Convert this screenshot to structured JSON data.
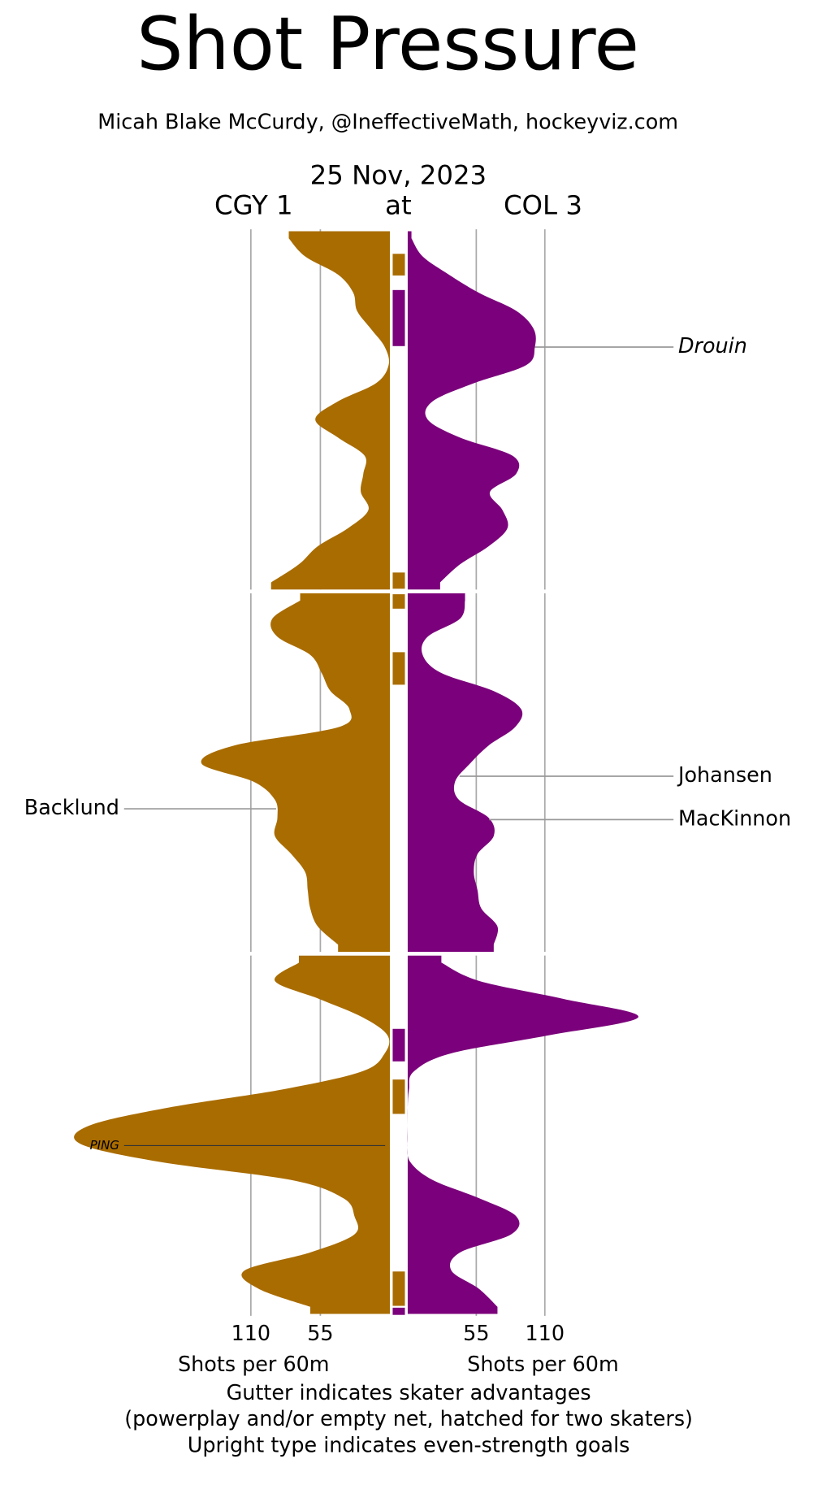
{
  "chart_data": {
    "type": "shot_pressure",
    "title": "Shot Pressure",
    "subtitle": "Micah Blake McCurdy, @IneffectiveMath, hockeyviz.com",
    "date": "25 Nov, 2023",
    "separator": "at",
    "x": [
      0.5,
      1.5,
      2.5,
      3.5,
      4.5,
      5.5,
      6.5,
      7.5,
      8.5,
      9.5,
      10.5,
      11.5,
      12.5,
      13.5,
      14.5,
      15.5,
      16.5,
      17.5,
      18.5,
      19.5,
      20.5,
      21.5,
      22.5,
      23.5,
      24.5,
      25.5,
      26.5,
      27.5,
      28.5,
      29.5,
      30.5,
      31.5,
      32.5,
      33.5,
      34.5,
      35.5,
      36.5,
      37.5,
      38.5,
      39.5,
      40.5,
      41.5,
      42.5,
      43.5,
      44.5,
      45.5,
      46.5,
      47.5,
      48.5,
      49.5,
      50.5,
      51.5,
      52.5,
      53.5,
      54.5,
      55.5,
      56.5,
      57.5,
      58.5,
      59.5
    ],
    "xlim": [
      0,
      60
    ],
    "period_breaks": [
      20,
      40
    ],
    "series": [
      {
        "name": "CGY 1",
        "side": "left",
        "color": "#a96c00",
        "values": [
          80,
          67,
          41,
          29,
          26,
          15,
          4,
          1,
          11,
          41,
          59,
          41,
          20,
          21,
          23,
          17,
          33,
          57,
          72,
          94,
          71,
          93,
          89,
          63,
          54,
          47,
          32,
          41,
          123,
          149,
          108,
          91,
          89,
          91,
          78,
          67,
          65,
          63,
          57,
          41,
          72,
          91,
          56,
          22,
          2,
          4,
          22,
          85,
          175,
          238,
          245,
          182,
          78,
          37,
          28,
          28,
          63,
          115,
          104,
          63
        ]
      },
      {
        "name": "COL 3",
        "side": "right",
        "color": "#7b007b",
        "values": [
          3,
          12,
          33,
          57,
          87,
          101,
          102,
          95,
          53,
          20,
          16,
          42,
          84,
          87,
          66,
          76,
          80,
          65,
          42,
          26,
          46,
          42,
          16,
          12,
          27,
          69,
          91,
          86,
          65,
          50,
          38,
          41,
          65,
          69,
          56,
          53,
          56,
          59,
          72,
          69,
          27,
          57,
          125,
          185,
          114,
          35,
          5,
          1,
          0,
          0,
          0,
          2,
          20,
          57,
          87,
          83,
          42,
          35,
          57,
          72
        ]
      }
    ],
    "ylim": [
      0,
      250
    ],
    "yticks": [
      55,
      110
    ],
    "ylabel": "Shots per 60m",
    "grid": true,
    "advantages": [
      {
        "color": "#a96c00",
        "start": 1.3,
        "end": 2.6
      },
      {
        "color": "#7b007b",
        "start": 3.3,
        "end": 6.5
      },
      {
        "color": "#a96c00",
        "start": 18.9,
        "end": 19.9
      },
      {
        "color": "#a96c00",
        "start": 20.1,
        "end": 21.0
      },
      {
        "color": "#a96c00",
        "start": 23.3,
        "end": 25.2
      },
      {
        "color": "#7b007b",
        "start": 44.1,
        "end": 46.0
      },
      {
        "color": "#a96c00",
        "start": 46.9,
        "end": 48.9
      },
      {
        "color": "#a96c00",
        "start": 57.5,
        "end": 59.5
      },
      {
        "color": "#7b007b",
        "start": 59.5,
        "end": 60
      }
    ],
    "annotations": [
      {
        "text": "Drouin",
        "minute": 6.5,
        "side": "right",
        "italic": true
      },
      {
        "text": "Johansen",
        "minute": 30.2,
        "side": "right",
        "italic": false
      },
      {
        "text": "MacKinnon",
        "minute": 32.6,
        "side": "right",
        "italic": false
      },
      {
        "text": "Backlund",
        "minute": 32.0,
        "side": "left",
        "italic": false
      },
      {
        "text": "PING",
        "minute": 50.6,
        "side": "left",
        "italic": true
      }
    ],
    "notes": [
      "Gutter indicates skater advantages",
      "(powerplay and/or empty net, hatched for two skaters)",
      "Upright type indicates even-strength goals"
    ]
  }
}
